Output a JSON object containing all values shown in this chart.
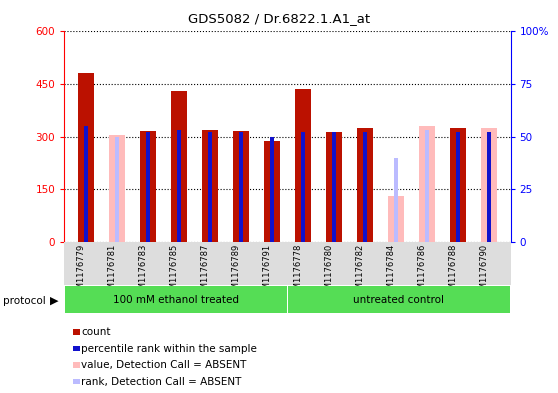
{
  "title": "GDS5082 / Dr.6822.1.A1_at",
  "samples": [
    "GSM1176779",
    "GSM1176781",
    "GSM1176783",
    "GSM1176785",
    "GSM1176787",
    "GSM1176789",
    "GSM1176791",
    "GSM1176778",
    "GSM1176780",
    "GSM1176782",
    "GSM1176784",
    "GSM1176786",
    "GSM1176788",
    "GSM1176790"
  ],
  "counts": [
    480,
    null,
    315,
    430,
    320,
    315,
    287,
    435,
    312,
    325,
    null,
    null,
    325,
    null
  ],
  "absent_values": [
    null,
    305,
    null,
    null,
    null,
    null,
    null,
    null,
    null,
    null,
    130,
    330,
    null,
    325
  ],
  "ranks_pct": [
    55,
    null,
    52,
    53,
    52,
    52,
    50,
    52,
    52,
    52,
    null,
    null,
    52,
    52
  ],
  "absent_ranks_pct": [
    null,
    50,
    null,
    null,
    null,
    null,
    null,
    null,
    null,
    null,
    40,
    53,
    null,
    null
  ],
  "protocol_groups": [
    {
      "label": "100 mM ethanol treated",
      "start": 0,
      "end": 6
    },
    {
      "label": "untreated control",
      "start": 7,
      "end": 13
    }
  ],
  "ylim_left": [
    0,
    600
  ],
  "ylim_right": [
    0,
    100
  ],
  "yticks_left": [
    0,
    150,
    300,
    450,
    600
  ],
  "yticks_right": [
    0,
    25,
    50,
    75,
    100
  ],
  "color_count": "#bb1100",
  "color_rank": "#1111cc",
  "color_absent_value": "#ffbbbb",
  "color_absent_rank": "#bbbbff",
  "color_protocol_bg": "#55dd55",
  "legend_items": [
    {
      "label": "count",
      "color": "#bb1100"
    },
    {
      "label": "percentile rank within the sample",
      "color": "#1111cc"
    },
    {
      "label": "value, Detection Call = ABSENT",
      "color": "#ffbbbb"
    },
    {
      "label": "rank, Detection Call = ABSENT",
      "color": "#bbbbff"
    }
  ]
}
